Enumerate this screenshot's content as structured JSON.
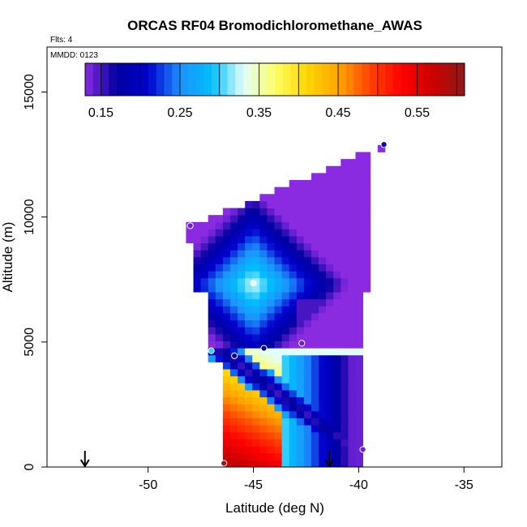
{
  "chart_data": {
    "type": "heatmap",
    "title": "ORCAS RF04 Bromodichloromethane_AWAS",
    "annotations": {
      "flights": "Flts: 4",
      "mmdd": "MMDD: 0123"
    },
    "xlabel": "Latitude (deg N)",
    "ylabel": "Altitude (m)",
    "xlim": [
      -54.8,
      -33.2
    ],
    "ylim": [
      0,
      16800
    ],
    "x_ticks": [
      -50,
      -45,
      -40,
      -35
    ],
    "x_tick_labels": [
      "-50",
      "-45",
      "-40",
      "-35"
    ],
    "y_ticks": [
      0,
      5000,
      10000,
      15000
    ],
    "y_tick_labels": [
      "0",
      "5000",
      "10000",
      "15000"
    ],
    "colorbar": {
      "min": 0.13,
      "max": 0.61,
      "ticks": [
        0.15,
        0.25,
        0.35,
        0.45,
        0.55
      ],
      "tick_labels": [
        "0.15",
        "0.25",
        "0.35",
        "0.45",
        "0.55"
      ],
      "stops": [
        "#8a2be2",
        "#0000a0",
        "#0000cd",
        "#1e90ff",
        "#00bfff",
        "#e0ffff",
        "#ffff66",
        "#ffd700",
        "#ffa500",
        "#ff4500",
        "#ff0000",
        "#cd0000",
        "#8b1a1a"
      ]
    },
    "arrows_latitude": [
      -53.0,
      -41.4
    ],
    "samples": [
      {
        "lat": -46.4,
        "alt": 150,
        "value": 0.6
      },
      {
        "lat": -39.8,
        "alt": 700,
        "value": 0.14
      },
      {
        "lat": -47.0,
        "alt": 4650,
        "value": 0.3
      },
      {
        "lat": -45.9,
        "alt": 4450,
        "value": 0.18
      },
      {
        "lat": -44.5,
        "alt": 4750,
        "value": 0.18
      },
      {
        "lat": -42.7,
        "alt": 4950,
        "value": 0.14
      },
      {
        "lat": -45.0,
        "alt": 7350,
        "value": 0.33
      },
      {
        "lat": -48.0,
        "alt": 9650,
        "value": 0.14
      },
      {
        "lat": -38.8,
        "alt": 12900,
        "value": 0.2
      }
    ]
  }
}
